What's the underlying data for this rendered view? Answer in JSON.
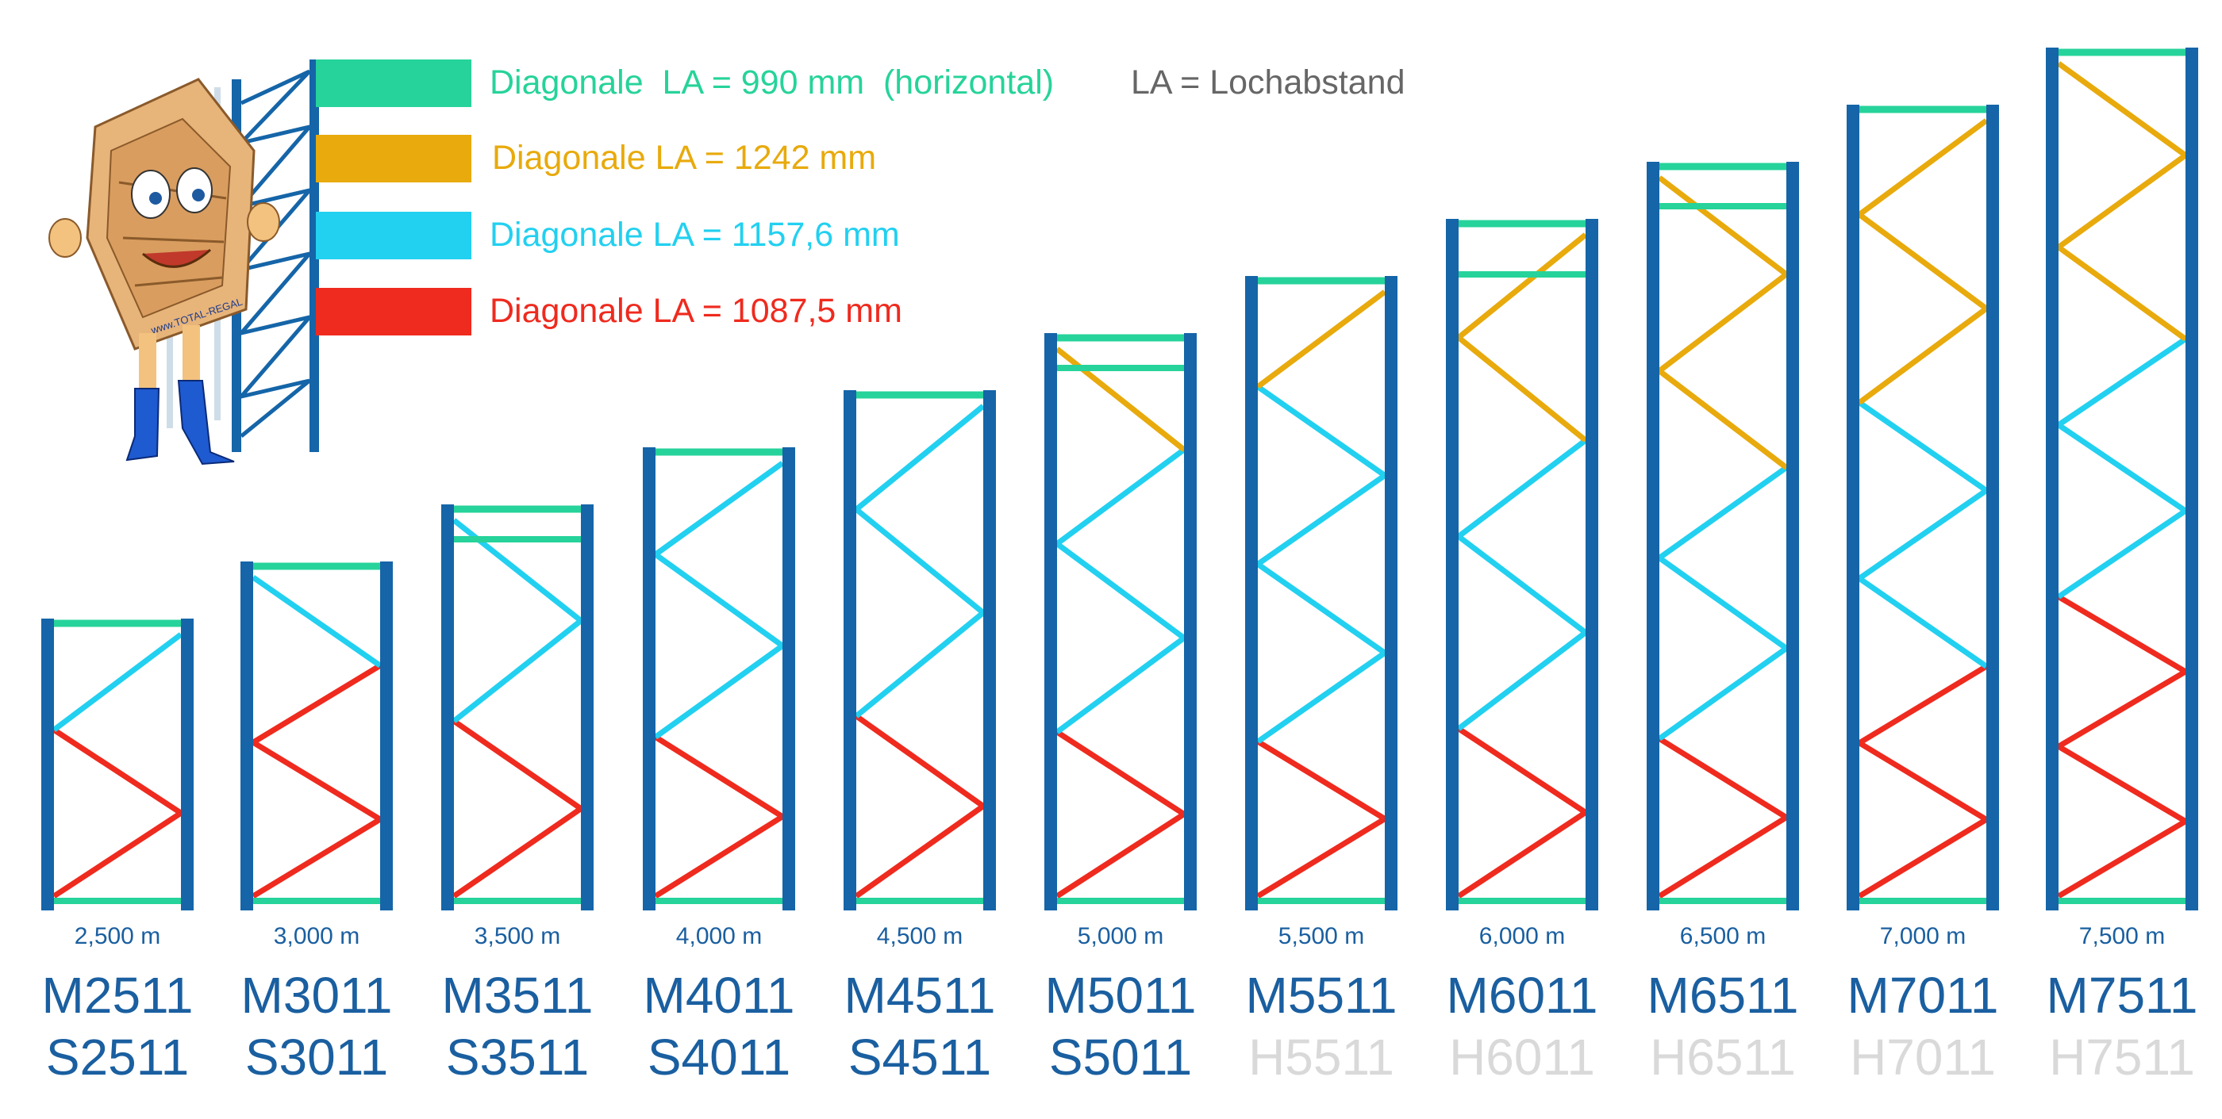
{
  "colors": {
    "post": "#1565a8",
    "horizontal": "#26d39a",
    "la1242": "#e8aa0c",
    "la1157": "#22d0f0",
    "la1087": "#ef2a1e",
    "heights": "#1a5fa0",
    "model": "#1a5fa0",
    "model_faded": "#d9d9d9",
    "note": "#666666"
  },
  "legend": [
    {
      "key": "horizontal",
      "label": "Diagonale  LA = 990 mm  (horizontal)",
      "color": "#26d39a"
    },
    {
      "key": "la1242",
      "label": "Diagonale LA = 1242 mm",
      "color": "#e8aa0c"
    },
    {
      "key": "la1157",
      "label": "Diagonale LA = 1157,6 mm",
      "color": "#22d0f0"
    },
    {
      "key": "la1087",
      "label": "Diagonale LA = 1087,5 mm",
      "color": "#ef2a1e"
    }
  ],
  "note": "LA = Lochabstand",
  "mascot": {
    "label": "www.TOTAL-REGAL"
  },
  "frames": [
    {
      "height": "2,500 m",
      "model_m": "M2511",
      "model_b": "S2511",
      "b_faded": false,
      "height_value": 2.5
    },
    {
      "height": "3,000 m",
      "model_m": "M3011",
      "model_b": "S3011",
      "b_faded": false,
      "height_value": 3.0
    },
    {
      "height": "3,500 m",
      "model_m": "M3511",
      "model_b": "S3511",
      "b_faded": false,
      "height_value": 3.5
    },
    {
      "height": "4,000 m",
      "model_m": "M4011",
      "model_b": "S4011",
      "b_faded": false,
      "height_value": 4.0
    },
    {
      "height": "4,500 m",
      "model_m": "M4511",
      "model_b": "S4511",
      "b_faded": false,
      "height_value": 4.5
    },
    {
      "height": "5,000 m",
      "model_m": "M5011",
      "model_b": "S5011",
      "b_faded": false,
      "height_value": 5.0
    },
    {
      "height": "5,500 m",
      "model_m": "M5511",
      "model_b": "H5511",
      "b_faded": true,
      "height_value": 5.5
    },
    {
      "height": "6,000 m",
      "model_m": "M6011",
      "model_b": "H6011",
      "b_faded": true,
      "height_value": 6.0
    },
    {
      "height": "6,500 m",
      "model_m": "M6511",
      "model_b": "H6511",
      "b_faded": true,
      "height_value": 6.5
    },
    {
      "height": "7,000 m",
      "model_m": "M7011",
      "model_b": "H7011",
      "b_faded": true,
      "height_value": 7.0
    },
    {
      "height": "7,500 m",
      "model_m": "M7511",
      "model_b": "H7511",
      "b_faded": true,
      "height_value": 7.5
    }
  ]
}
